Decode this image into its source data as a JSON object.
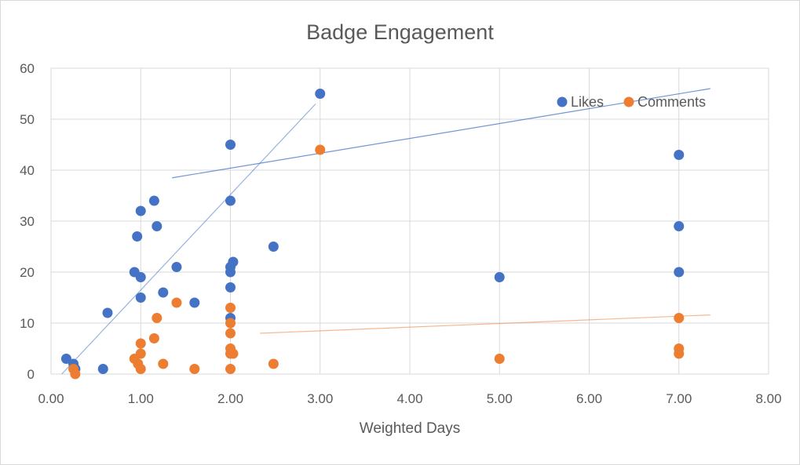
{
  "chart_data": {
    "type": "scatter",
    "title": "Badge Engagement",
    "xlabel": "Weighted Days",
    "ylabel": "",
    "xlim": [
      0,
      8
    ],
    "ylim": [
      0,
      60
    ],
    "x_ticks": [
      "0.00",
      "1.00",
      "2.00",
      "3.00",
      "4.00",
      "5.00",
      "6.00",
      "7.00",
      "8.00"
    ],
    "y_ticks": [
      "0",
      "10",
      "20",
      "30",
      "40",
      "50",
      "60"
    ],
    "grid": true,
    "legend_position": "top-right",
    "series": [
      {
        "name": "Likes",
        "color": "#4472C4",
        "points": [
          [
            0.17,
            3
          ],
          [
            0.25,
            2
          ],
          [
            0.27,
            1
          ],
          [
            0.58,
            1
          ],
          [
            0.63,
            12
          ],
          [
            0.93,
            20
          ],
          [
            0.96,
            27
          ],
          [
            1.0,
            32
          ],
          [
            1.0,
            19
          ],
          [
            1.0,
            15
          ],
          [
            1.15,
            34
          ],
          [
            1.18,
            29
          ],
          [
            1.25,
            16
          ],
          [
            1.4,
            21
          ],
          [
            1.6,
            14
          ],
          [
            2.0,
            45
          ],
          [
            2.0,
            34
          ],
          [
            2.0,
            21
          ],
          [
            2.0,
            20
          ],
          [
            2.0,
            17
          ],
          [
            2.0,
            11
          ],
          [
            2.03,
            22
          ],
          [
            2.48,
            25
          ],
          [
            3.0,
            55
          ],
          [
            5.0,
            19
          ],
          [
            7.0,
            43
          ],
          [
            7.0,
            29
          ],
          [
            7.0,
            20
          ]
        ],
        "trendline": [
          [
            0.12,
            0
          ],
          [
            2.95,
            53
          ]
        ]
      },
      {
        "name": "Comments",
        "color": "#ED7D31",
        "points": [
          [
            0.25,
            1
          ],
          [
            0.27,
            0
          ],
          [
            0.93,
            3
          ],
          [
            0.97,
            2
          ],
          [
            1.0,
            6
          ],
          [
            1.0,
            4
          ],
          [
            1.0,
            1
          ],
          [
            1.15,
            7
          ],
          [
            1.18,
            11
          ],
          [
            1.25,
            2
          ],
          [
            1.4,
            14
          ],
          [
            1.6,
            1
          ],
          [
            2.0,
            13
          ],
          [
            2.0,
            10
          ],
          [
            2.0,
            8
          ],
          [
            2.0,
            5
          ],
          [
            2.0,
            4
          ],
          [
            2.0,
            1
          ],
          [
            2.03,
            4
          ],
          [
            2.48,
            2
          ],
          [
            3.0,
            44
          ],
          [
            5.0,
            3
          ],
          [
            7.0,
            11
          ],
          [
            7.0,
            5
          ],
          [
            7.0,
            4
          ]
        ],
        "trendline": [
          [
            2.33,
            8
          ],
          [
            7.35,
            11.6
          ]
        ]
      }
    ],
    "extra_trendline": {
      "color": "#4472C4",
      "line": [
        [
          1.35,
          38.5
        ],
        [
          7.35,
          56
        ]
      ]
    }
  }
}
